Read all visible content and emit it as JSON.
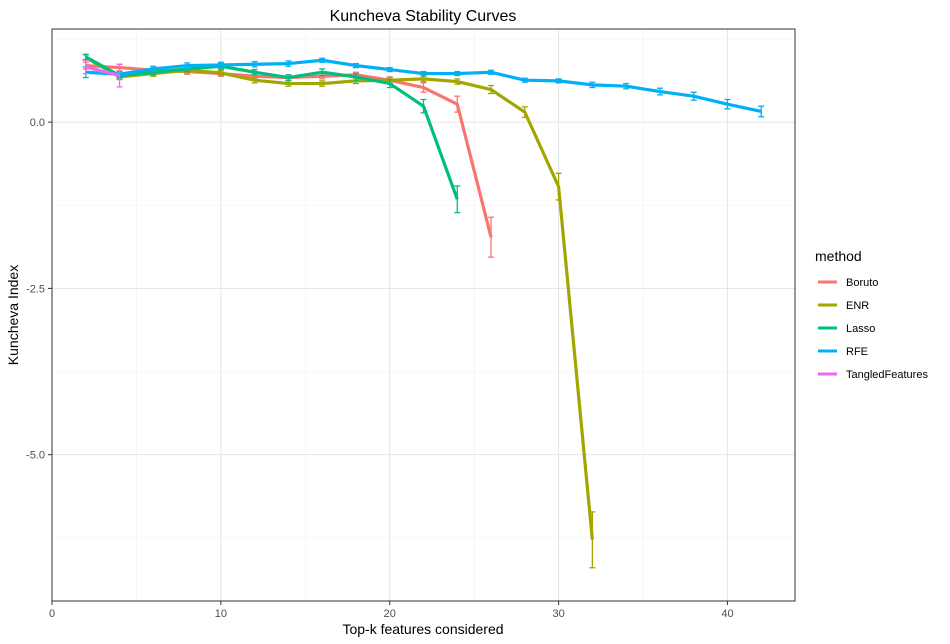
{
  "chart_data": {
    "type": "line",
    "title": "Kuncheva Stability Curves",
    "xlabel": "Top-k features considered",
    "ylabel": "Kuncheva Index",
    "xlim": [
      0,
      44
    ],
    "ylim": [
      -7.2,
      1.4
    ],
    "x_ticks": [
      0,
      10,
      20,
      30,
      40
    ],
    "x_tick_labels": [
      "0",
      "10",
      "20",
      "30",
      "40"
    ],
    "y_ticks": [
      0,
      -2.5,
      -5
    ],
    "y_tick_labels": [
      "0.0",
      "-2.5",
      "-5.0"
    ],
    "grid": true,
    "error_bars": true,
    "legend": {
      "title": "method",
      "position": "right"
    },
    "series": [
      {
        "name": "Boruto",
        "color": "#F8766D",
        "points": [
          {
            "x": 2,
            "y": 0.85,
            "err": 0.05
          },
          {
            "x": 4,
            "y": 0.82,
            "err": 0.05
          },
          {
            "x": 6,
            "y": 0.78,
            "err": 0.04
          },
          {
            "x": 8,
            "y": 0.76,
            "err": 0.04
          },
          {
            "x": 10,
            "y": 0.73,
            "err": 0.04
          },
          {
            "x": 12,
            "y": 0.69,
            "err": 0.04
          },
          {
            "x": 14,
            "y": 0.67,
            "err": 0.04
          },
          {
            "x": 16,
            "y": 0.69,
            "err": 0.04
          },
          {
            "x": 18,
            "y": 0.71,
            "err": 0.04
          },
          {
            "x": 20,
            "y": 0.63,
            "err": 0.05
          },
          {
            "x": 22,
            "y": 0.52,
            "err": 0.07
          },
          {
            "x": 24,
            "y": 0.27,
            "err": 0.12
          },
          {
            "x": 26,
            "y": -1.73,
            "err": 0.3
          }
        ]
      },
      {
        "name": "ENR",
        "color": "#A3A500",
        "points": [
          {
            "x": 2,
            "y": 0.97,
            "err": 0.04
          },
          {
            "x": 4,
            "y": 0.68,
            "err": 0.04
          },
          {
            "x": 6,
            "y": 0.73,
            "err": 0.04
          },
          {
            "x": 8,
            "y": 0.78,
            "err": 0.04
          },
          {
            "x": 10,
            "y": 0.74,
            "err": 0.04
          },
          {
            "x": 12,
            "y": 0.63,
            "err": 0.04
          },
          {
            "x": 14,
            "y": 0.58,
            "err": 0.04
          },
          {
            "x": 16,
            "y": 0.58,
            "err": 0.04
          },
          {
            "x": 18,
            "y": 0.62,
            "err": 0.04
          },
          {
            "x": 20,
            "y": 0.63,
            "err": 0.04
          },
          {
            "x": 22,
            "y": 0.65,
            "err": 0.04
          },
          {
            "x": 24,
            "y": 0.61,
            "err": 0.04
          },
          {
            "x": 26,
            "y": 0.49,
            "err": 0.06
          },
          {
            "x": 28,
            "y": 0.15,
            "err": 0.08
          },
          {
            "x": 30,
            "y": -0.97,
            "err": 0.2
          },
          {
            "x": 32,
            "y": -6.28,
            "err": 0.42
          }
        ]
      },
      {
        "name": "Lasso",
        "color": "#00BF7D",
        "points": [
          {
            "x": 2,
            "y": 0.98,
            "err": 0.04
          },
          {
            "x": 4,
            "y": 0.7,
            "err": 0.04
          },
          {
            "x": 6,
            "y": 0.75,
            "err": 0.04
          },
          {
            "x": 8,
            "y": 0.8,
            "err": 0.04
          },
          {
            "x": 10,
            "y": 0.84,
            "err": 0.04
          },
          {
            "x": 12,
            "y": 0.75,
            "err": 0.04
          },
          {
            "x": 14,
            "y": 0.67,
            "err": 0.04
          },
          {
            "x": 16,
            "y": 0.75,
            "err": 0.05
          },
          {
            "x": 18,
            "y": 0.68,
            "err": 0.05
          },
          {
            "x": 20,
            "y": 0.58,
            "err": 0.06
          },
          {
            "x": 22,
            "y": 0.24,
            "err": 0.1
          },
          {
            "x": 24,
            "y": -1.16,
            "err": 0.2
          }
        ]
      },
      {
        "name": "RFE",
        "color": "#00B0F6",
        "points": [
          {
            "x": 2,
            "y": 0.75,
            "err": 0.08
          },
          {
            "x": 4,
            "y": 0.72,
            "err": 0.04
          },
          {
            "x": 6,
            "y": 0.8,
            "err": 0.04
          },
          {
            "x": 8,
            "y": 0.85,
            "err": 0.04
          },
          {
            "x": 10,
            "y": 0.86,
            "err": 0.04
          },
          {
            "x": 12,
            "y": 0.87,
            "err": 0.04
          },
          {
            "x": 14,
            "y": 0.88,
            "err": 0.04
          },
          {
            "x": 16,
            "y": 0.93,
            "err": 0.03
          },
          {
            "x": 18,
            "y": 0.85,
            "err": 0.03
          },
          {
            "x": 20,
            "y": 0.79,
            "err": 0.03
          },
          {
            "x": 22,
            "y": 0.73,
            "err": 0.03
          },
          {
            "x": 24,
            "y": 0.73,
            "err": 0.03
          },
          {
            "x": 26,
            "y": 0.75,
            "err": 0.03
          },
          {
            "x": 28,
            "y": 0.63,
            "err": 0.03
          },
          {
            "x": 30,
            "y": 0.62,
            "err": 0.03
          },
          {
            "x": 32,
            "y": 0.56,
            "err": 0.04
          },
          {
            "x": 34,
            "y": 0.54,
            "err": 0.04
          },
          {
            "x": 36,
            "y": 0.46,
            "err": 0.05
          },
          {
            "x": 38,
            "y": 0.39,
            "err": 0.06
          },
          {
            "x": 40,
            "y": 0.27,
            "err": 0.07
          },
          {
            "x": 42,
            "y": 0.16,
            "err": 0.08
          }
        ]
      },
      {
        "name": "TangledFeatures",
        "color": "#E76BF3",
        "points": [
          {
            "x": 2,
            "y": 0.83,
            "err": 0.1
          },
          {
            "x": 4,
            "y": 0.7,
            "err": 0.17
          }
        ]
      }
    ]
  }
}
